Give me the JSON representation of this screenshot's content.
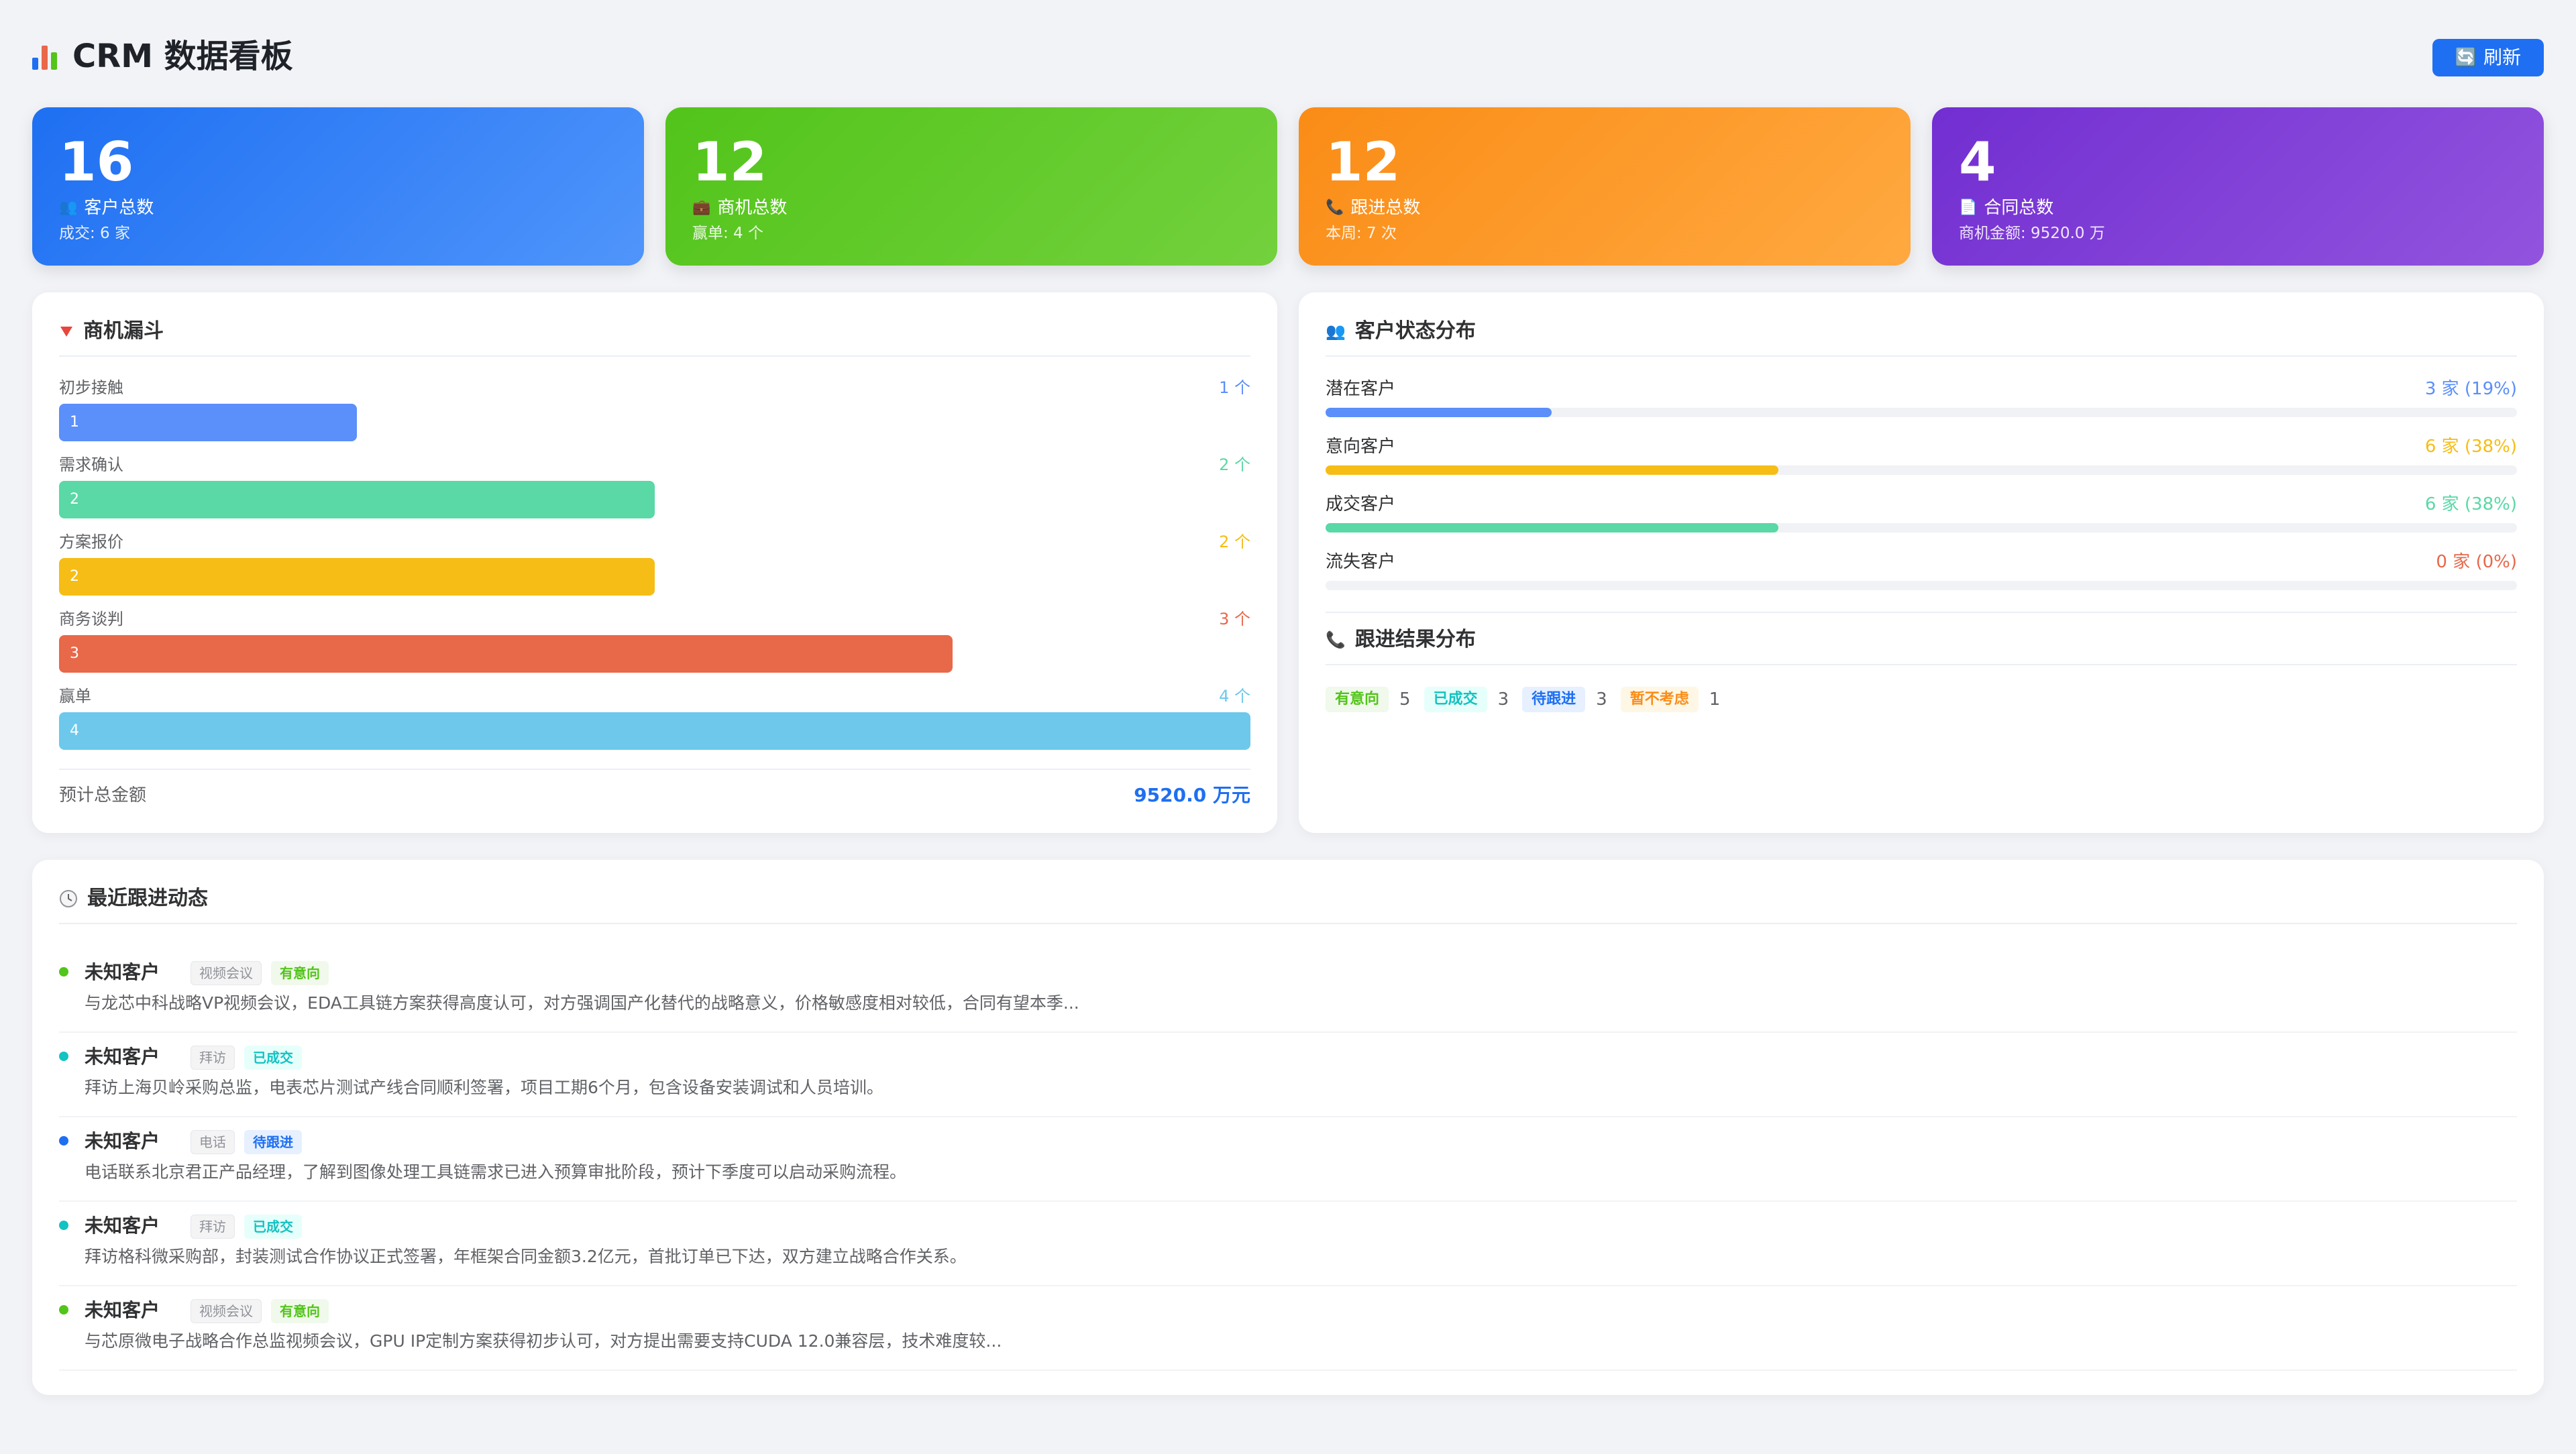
{
  "header": {
    "title": "CRM 数据看板",
    "title_icon": "bar-chart-icon",
    "refresh_label": "刷新",
    "refresh_icon": "refresh-icon"
  },
  "stats": [
    {
      "value": "16",
      "label": "客户总数",
      "sub": "成交: 6 家",
      "icon": "users-icon",
      "glyph": "👥",
      "color_from": "#1e6ff2",
      "color_to": "#4f95fb"
    },
    {
      "value": "12",
      "label": "商机总数",
      "sub": "赢单: 4 个",
      "icon": "briefcase-icon",
      "glyph": "💼",
      "color_from": "#52c41a",
      "color_to": "#73d13d"
    },
    {
      "value": "12",
      "label": "跟进总数",
      "sub": "本周: 7 次",
      "icon": "phone-icon",
      "glyph": "📞",
      "color_from": "#fa8c16",
      "color_to": "#ffa940"
    },
    {
      "value": "4",
      "label": "合同总数",
      "sub": "商机金额: 9520.0 万",
      "icon": "document-icon",
      "glyph": "📄",
      "color_from": "#722ed1",
      "color_to": "#9254de"
    }
  ],
  "funnel": {
    "title": "商机漏斗",
    "title_icon": "funnel-icon",
    "max": 4,
    "stages": [
      {
        "label": "初步接触",
        "value": 1,
        "count_text": "1 个",
        "color": "#5b8ff9"
      },
      {
        "label": "需求确认",
        "value": 2,
        "count_text": "2 个",
        "color": "#5ad8a6"
      },
      {
        "label": "方案报价",
        "value": 2,
        "count_text": "2 个",
        "color": "#f6bd16"
      },
      {
        "label": "商务谈判",
        "value": 3,
        "count_text": "3 个",
        "color": "#e8684a"
      },
      {
        "label": "赢单",
        "value": 4,
        "count_text": "4 个",
        "color": "#6dc8ec"
      }
    ],
    "total_label": "预计总金额",
    "total_value": "9520.0 万元"
  },
  "status": {
    "title": "客户状态分布",
    "title_icon": "users-icon",
    "items": [
      {
        "label": "潜在客户",
        "count_text": "3 家 (19%)",
        "percent": 19,
        "color": "#5b8ff9"
      },
      {
        "label": "意向客户",
        "count_text": "6 家 (38%)",
        "percent": 38,
        "color": "#f6bd16"
      },
      {
        "label": "成交客户",
        "count_text": "6 家 (38%)",
        "percent": 38,
        "color": "#5ad8a6"
      },
      {
        "label": "流失客户",
        "count_text": "0 家 (0%)",
        "percent": 0,
        "color": "#e8684a"
      }
    ]
  },
  "results": {
    "title": "跟进结果分布",
    "title_icon": "phone-icon",
    "items": [
      {
        "label": "有意向",
        "count": "5",
        "bg": "#f0f9eb",
        "fg": "#52c41a"
      },
      {
        "label": "已成交",
        "count": "3",
        "bg": "#e6fffb",
        "fg": "#13c2c2"
      },
      {
        "label": "待跟进",
        "count": "3",
        "bg": "#e6f0ff",
        "fg": "#1e6ff2"
      },
      {
        "label": "暂不考虑",
        "count": "1",
        "bg": "#fff7e6",
        "fg": "#fa8c16"
      }
    ]
  },
  "activity": {
    "title": "最近跟进动态",
    "title_icon": "clock-icon",
    "items": [
      {
        "customer": "未知客户",
        "type": "视频会议",
        "result": "有意向",
        "dot": "#52c41a",
        "result_bg": "#f0f9eb",
        "result_fg": "#52c41a",
        "desc": "与龙芯中科战略VP视频会议，EDA工具链方案获得高度认可，对方强调国产化替代的战略意义，价格敏感度相对较低，合同有望本季..."
      },
      {
        "customer": "未知客户",
        "type": "拜访",
        "result": "已成交",
        "dot": "#13c2c2",
        "result_bg": "#e6fffb",
        "result_fg": "#13c2c2",
        "desc": "拜访上海贝岭采购总监，电表芯片测试产线合同顺利签署，项目工期6个月，包含设备安装调试和人员培训。"
      },
      {
        "customer": "未知客户",
        "type": "电话",
        "result": "待跟进",
        "dot": "#1e6ff2",
        "result_bg": "#e6f0ff",
        "result_fg": "#1e6ff2",
        "desc": "电话联系北京君正产品经理，了解到图像处理工具链需求已进入预算审批阶段，预计下季度可以启动采购流程。"
      },
      {
        "customer": "未知客户",
        "type": "拜访",
        "result": "已成交",
        "dot": "#13c2c2",
        "result_bg": "#e6fffb",
        "result_fg": "#13c2c2",
        "desc": "拜访格科微采购部，封装测试合作协议正式签署，年框架合同金额3.2亿元，首批订单已下达，双方建立战略合作关系。"
      },
      {
        "customer": "未知客户",
        "type": "视频会议",
        "result": "有意向",
        "dot": "#52c41a",
        "result_bg": "#f0f9eb",
        "result_fg": "#52c41a",
        "desc": "与芯原微电子战略合作总监视频会议，GPU IP定制方案获得初步认可，对方提出需要支持CUDA 12.0兼容层，技术难度较..."
      }
    ]
  }
}
